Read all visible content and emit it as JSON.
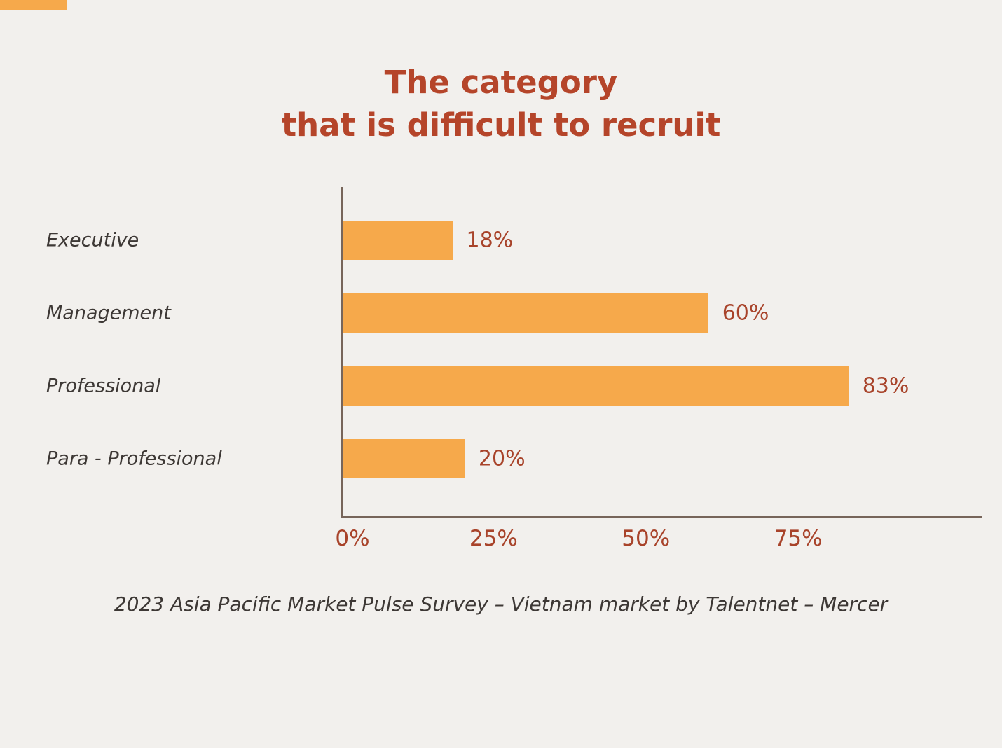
{
  "colors": {
    "background": "#f2f0ed",
    "bar": "#f6a94b",
    "title": "#b5452a",
    "value_text": "#a8432a",
    "tick_text": "#a8432a",
    "label_text": "#3d3835",
    "axis": "#77655a",
    "corner_accent": "#f6a94b"
  },
  "title": {
    "line1": "The category",
    "line2": "that is difficult to recruit"
  },
  "chart_data": {
    "type": "bar",
    "orientation": "horizontal",
    "title": "The category that is difficult to recruit",
    "categories": [
      "Executive",
      "Management",
      "Professional",
      "Para - Professional"
    ],
    "values": [
      18,
      60,
      83,
      20
    ],
    "value_labels": [
      "18%",
      "60%",
      "83%",
      "20%"
    ],
    "x_ticks": [
      0,
      25,
      50,
      75
    ],
    "x_tick_labels": [
      "0%",
      "25%",
      "50%",
      "75%"
    ],
    "xlim": [
      0,
      105
    ],
    "grid": false,
    "legend": "none",
    "bar_color": "#f6a94b",
    "caption": "2023 Asia Pacific Market Pulse Survey – Vietnam market by Talentnet – Mercer"
  },
  "caption": "2023 Asia Pacific Market Pulse Survey – Vietnam market by Talentnet – Mercer"
}
